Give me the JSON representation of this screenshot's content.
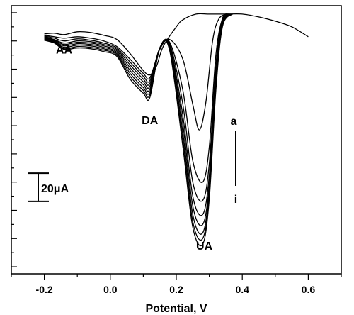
{
  "chart_data": {
    "type": "line",
    "title": "",
    "xlabel": "Potential, V",
    "ylabel": "",
    "xlim": [
      -0.3,
      0.7
    ],
    "xticks": [
      "-0.2",
      "0.0",
      "0.2",
      "0.4",
      "0.6"
    ],
    "xtick_values": [
      -0.2,
      0.0,
      0.2,
      0.4,
      0.6
    ],
    "ylim": [
      -170,
      20
    ],
    "grid": false,
    "scale_bar": {
      "label": "20μA",
      "size": 20
    },
    "trend_marker": {
      "start": "a",
      "end": "i"
    },
    "annotations": [
      {
        "text": "AA",
        "x": -0.14,
        "y": -14
      },
      {
        "text": "DA",
        "x": 0.12,
        "y": -64
      },
      {
        "text": "UA",
        "x": 0.285,
        "y": -153
      }
    ],
    "series": [
      {
        "values": [
          [
            -0.2,
            0
          ],
          [
            -0.17,
            0.5
          ],
          [
            -0.14,
            -0.5
          ],
          [
            -0.1,
            1.5
          ],
          [
            -0.06,
            1
          ],
          [
            -0.02,
            -1
          ],
          [
            0.02,
            -4
          ],
          [
            0.06,
            -14
          ],
          [
            0.1,
            -26
          ],
          [
            0.12,
            -29
          ],
          [
            0.14,
            -23
          ],
          [
            0.16,
            -9
          ],
          [
            0.2,
            5
          ],
          [
            0.22,
            10
          ],
          [
            0.26,
            14
          ],
          [
            0.3,
            14
          ],
          [
            0.35,
            14
          ],
          [
            0.4,
            14
          ],
          [
            0.45,
            12
          ],
          [
            0.5,
            9
          ],
          [
            0.55,
            5
          ],
          [
            0.6,
            -2
          ]
        ]
      },
      {
        "values": [
          [
            -0.2,
            -1
          ],
          [
            -0.17,
            -2
          ],
          [
            -0.14,
            -3
          ],
          [
            -0.1,
            -2
          ],
          [
            -0.06,
            -3
          ],
          [
            -0.02,
            -5
          ],
          [
            0.02,
            -9
          ],
          [
            0.06,
            -18
          ],
          [
            0.1,
            -28
          ],
          [
            0.12,
            -31
          ],
          [
            0.15,
            -11
          ],
          [
            0.18,
            -4
          ],
          [
            0.22,
            -18
          ],
          [
            0.25,
            -50
          ],
          [
            0.27,
            -68
          ],
          [
            0.29,
            -48
          ],
          [
            0.31,
            -5
          ],
          [
            0.33,
            11
          ],
          [
            0.36,
            14
          ]
        ]
      },
      {
        "values": [
          [
            -0.2,
            -1.5
          ],
          [
            -0.17,
            -3
          ],
          [
            -0.14,
            -5
          ],
          [
            -0.1,
            -3.5
          ],
          [
            -0.06,
            -4.5
          ],
          [
            -0.02,
            -6.5
          ],
          [
            0.02,
            -10
          ],
          [
            0.06,
            -20
          ],
          [
            0.1,
            -30
          ],
          [
            0.12,
            -33
          ],
          [
            0.15,
            -10
          ],
          [
            0.18,
            -6
          ],
          [
            0.22,
            -40
          ],
          [
            0.25,
            -90
          ],
          [
            0.28,
            -105
          ],
          [
            0.3,
            -80
          ],
          [
            0.32,
            -15
          ],
          [
            0.34,
            11
          ],
          [
            0.36,
            14
          ]
        ]
      },
      {
        "values": [
          [
            -0.2,
            -2
          ],
          [
            -0.17,
            -4
          ],
          [
            -0.14,
            -6.5
          ],
          [
            -0.1,
            -5
          ],
          [
            -0.06,
            -5.5
          ],
          [
            -0.02,
            -7.5
          ],
          [
            0.02,
            -11
          ],
          [
            0.06,
            -22
          ],
          [
            0.1,
            -32
          ],
          [
            0.12,
            -35
          ],
          [
            0.15,
            -10
          ],
          [
            0.18,
            -7
          ],
          [
            0.22,
            -50
          ],
          [
            0.25,
            -105
          ],
          [
            0.28,
            -118
          ],
          [
            0.3,
            -92
          ],
          [
            0.32,
            -22
          ],
          [
            0.34,
            10
          ],
          [
            0.37,
            14
          ]
        ]
      },
      {
        "values": [
          [
            -0.2,
            -2.5
          ],
          [
            -0.17,
            -4.5
          ],
          [
            -0.14,
            -7.5
          ],
          [
            -0.1,
            -6
          ],
          [
            -0.06,
            -6.5
          ],
          [
            -0.02,
            -8.5
          ],
          [
            0.02,
            -12
          ],
          [
            0.06,
            -24
          ],
          [
            0.1,
            -34
          ],
          [
            0.12,
            -37
          ],
          [
            0.15,
            -10
          ],
          [
            0.18,
            -8
          ],
          [
            0.22,
            -58
          ],
          [
            0.25,
            -115
          ],
          [
            0.28,
            -128
          ],
          [
            0.3,
            -100
          ],
          [
            0.32,
            -28
          ],
          [
            0.34,
            9
          ],
          [
            0.37,
            14
          ]
        ]
      },
      {
        "values": [
          [
            -0.2,
            -3
          ],
          [
            -0.17,
            -5
          ],
          [
            -0.14,
            -8.5
          ],
          [
            -0.1,
            -7
          ],
          [
            -0.06,
            -7.5
          ],
          [
            -0.02,
            -9.5
          ],
          [
            0.02,
            -13
          ],
          [
            0.06,
            -26
          ],
          [
            0.1,
            -36
          ],
          [
            0.12,
            -39
          ],
          [
            0.15,
            -10
          ],
          [
            0.18,
            -9
          ],
          [
            0.22,
            -64
          ],
          [
            0.25,
            -122
          ],
          [
            0.28,
            -135
          ],
          [
            0.3,
            -106
          ],
          [
            0.32,
            -32
          ],
          [
            0.34,
            8
          ],
          [
            0.37,
            14
          ]
        ]
      },
      {
        "values": [
          [
            -0.2,
            -3.5
          ],
          [
            -0.17,
            -5.5
          ],
          [
            -0.14,
            -9.5
          ],
          [
            -0.1,
            -8
          ],
          [
            -0.06,
            -8.5
          ],
          [
            -0.02,
            -10.5
          ],
          [
            0.02,
            -14
          ],
          [
            0.06,
            -28
          ],
          [
            0.1,
            -38
          ],
          [
            0.12,
            -41
          ],
          [
            0.15,
            -10
          ],
          [
            0.18,
            -10
          ],
          [
            0.22,
            -70
          ],
          [
            0.25,
            -128
          ],
          [
            0.28,
            -141
          ],
          [
            0.3,
            -110
          ],
          [
            0.32,
            -36
          ],
          [
            0.34,
            7
          ],
          [
            0.37,
            14
          ]
        ]
      },
      {
        "values": [
          [
            -0.2,
            -4
          ],
          [
            -0.17,
            -6
          ],
          [
            -0.14,
            -10.5
          ],
          [
            -0.1,
            -9
          ],
          [
            -0.06,
            -9.5
          ],
          [
            -0.02,
            -11.5
          ],
          [
            0.02,
            -15
          ],
          [
            0.06,
            -30
          ],
          [
            0.1,
            -40
          ],
          [
            0.12,
            -43
          ],
          [
            0.15,
            -10
          ],
          [
            0.18,
            -11
          ],
          [
            0.22,
            -75
          ],
          [
            0.25,
            -133
          ],
          [
            0.28,
            -145
          ],
          [
            0.3,
            -114
          ],
          [
            0.32,
            -38
          ],
          [
            0.34,
            6
          ],
          [
            0.37,
            14
          ]
        ]
      },
      {
        "values": [
          [
            -0.2,
            -4.5
          ],
          [
            -0.17,
            -6.5
          ],
          [
            -0.14,
            -11
          ],
          [
            -0.1,
            -10
          ],
          [
            -0.06,
            -10.5
          ],
          [
            -0.02,
            -12.5
          ],
          [
            0.02,
            -16
          ],
          [
            0.06,
            -32
          ],
          [
            0.1,
            -42
          ],
          [
            0.12,
            -45
          ],
          [
            0.15,
            -10
          ],
          [
            0.18,
            -12
          ],
          [
            0.22,
            -80
          ],
          [
            0.25,
            -137
          ],
          [
            0.28,
            -149
          ],
          [
            0.3,
            -117
          ],
          [
            0.32,
            -40
          ],
          [
            0.34,
            5
          ],
          [
            0.37,
            14
          ]
        ]
      }
    ]
  }
}
